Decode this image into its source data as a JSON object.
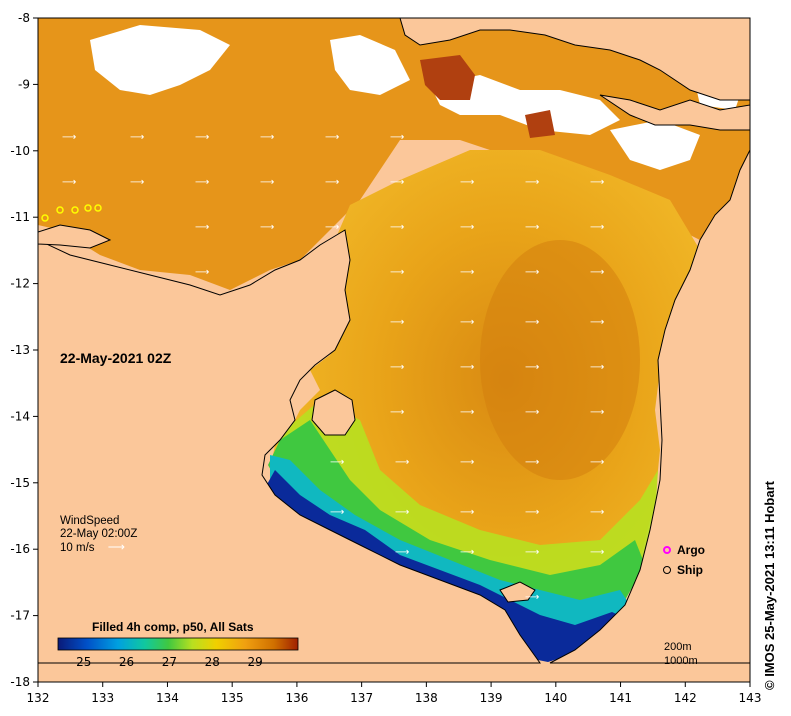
{
  "map": {
    "date_label": "22-May-2021 02Z",
    "colorbar_title": "Filled 4h comp, p50, All Sats",
    "colorbar_ticks": [
      "25",
      "26",
      "27",
      "28",
      "29"
    ],
    "colors": {
      "land": "#fbc79a",
      "no_data": "#ffffff",
      "cb": [
        "#0a1a78",
        "#0050c8",
        "#00a0e0",
        "#10c8a0",
        "#40c840",
        "#b8e020",
        "#f0d000",
        "#f0a010",
        "#d07000",
        "#a02000"
      ]
    }
  },
  "axes": {
    "x_ticks": [
      "132",
      "133",
      "134",
      "135",
      "136",
      "137",
      "138",
      "139",
      "140",
      "141",
      "142",
      "143"
    ],
    "y_ticks": [
      "-8",
      "-9",
      "-10",
      "-11",
      "-12",
      "-13",
      "-14",
      "-15",
      "-16",
      "-17",
      "-18"
    ]
  },
  "wind": {
    "label": "WindSpeed",
    "time": "22-May 02:00Z",
    "speed": "10 m/s"
  },
  "legend": {
    "argo": "Argo",
    "ship": "Ship"
  },
  "scale": {
    "depth1": "200m",
    "depth2": "1000m"
  },
  "credit": "© IMOS 25-May-2021 13:11 Hobart"
}
